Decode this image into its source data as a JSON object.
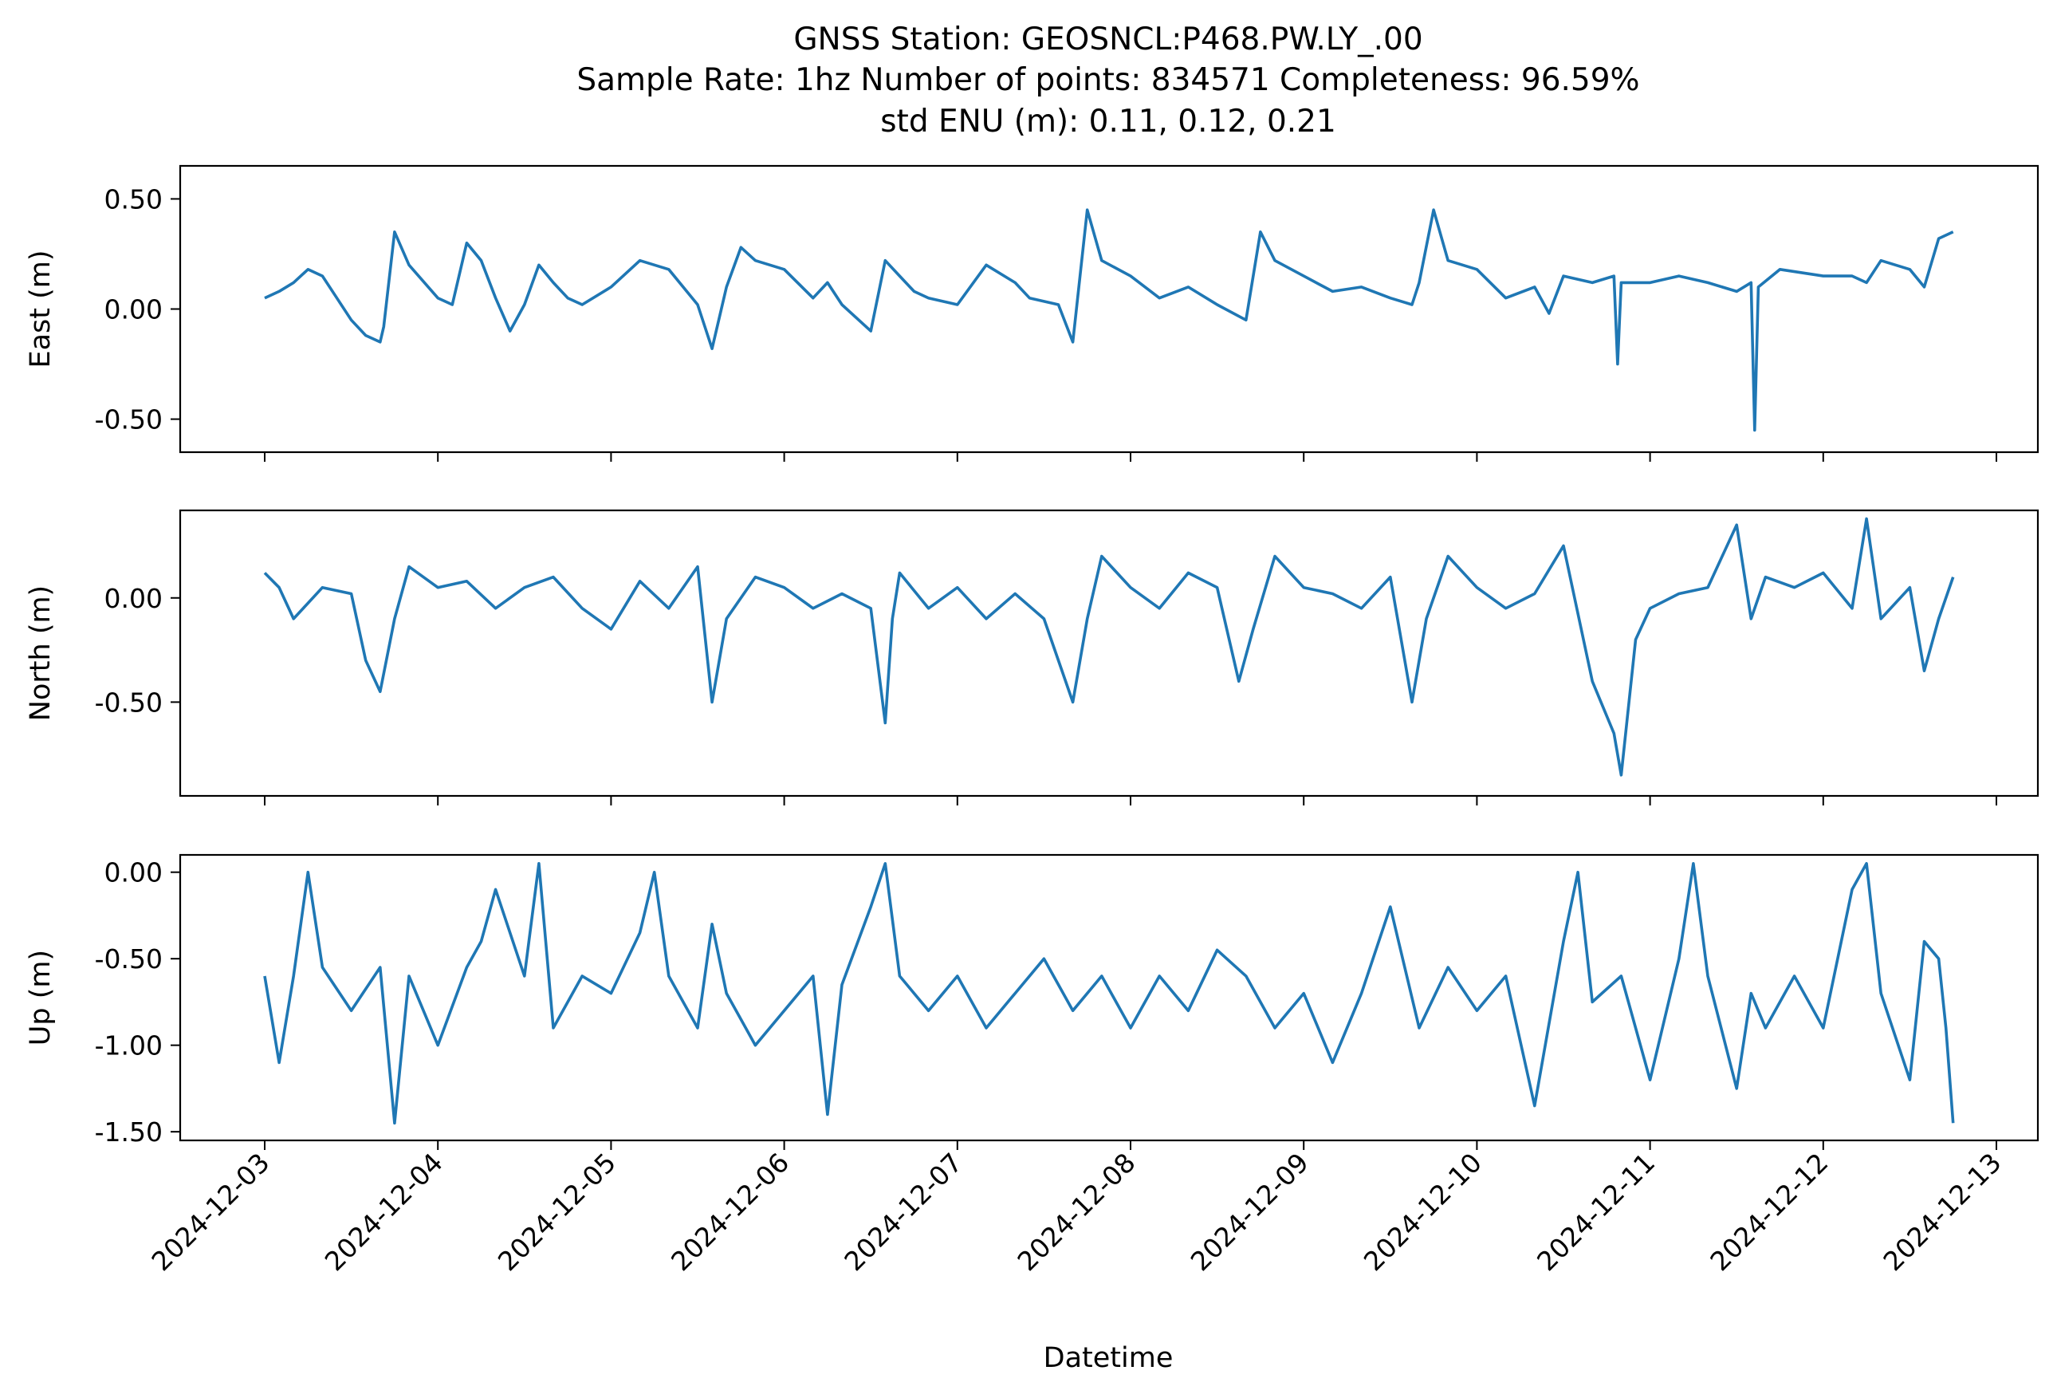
{
  "chart_data": {
    "type": "line",
    "title": [
      "GNSS Station: GEOSNCL:P468.PW.LY_.00",
      "Sample Rate: 1hz   Number of points: 834571    Completeness:  96.59%",
      "std ENU (m):  0.11, 0.12, 0.21"
    ],
    "xlabel": "Datetime",
    "x_range": [
      "2024-12-03T00:00",
      "2024-12-12T18:00"
    ],
    "x_ticks": [
      "2024-12-03",
      "2024-12-04",
      "2024-12-05",
      "2024-12-06",
      "2024-12-07",
      "2024-12-08",
      "2024-12-09",
      "2024-12-10",
      "2024-12-11",
      "2024-12-12",
      "2024-12-13"
    ],
    "color": "#1f77b4",
    "grid": false,
    "panels": [
      {
        "ylabel": "East (m)",
        "ylim": [
          -0.65,
          0.65
        ],
        "y_ticks": [
          "0.50",
          "0.00",
          "-0.50"
        ],
        "y_tick_values": [
          0.5,
          0.0,
          -0.5
        ],
        "x": [
          "2024-12-03T00:00",
          "2024-12-03T02:00",
          "2024-12-03T04:00",
          "2024-12-03T06:00",
          "2024-12-03T08:00",
          "2024-12-03T10:00",
          "2024-12-03T12:00",
          "2024-12-03T14:00",
          "2024-12-03T16:00",
          "2024-12-03T16:30",
          "2024-12-03T18:00",
          "2024-12-03T20:00",
          "2024-12-04T00:00",
          "2024-12-04T02:00",
          "2024-12-04T04:00",
          "2024-12-04T06:00",
          "2024-12-04T08:00",
          "2024-12-04T10:00",
          "2024-12-04T12:00",
          "2024-12-04T14:00",
          "2024-12-04T16:00",
          "2024-12-04T18:00",
          "2024-12-04T20:00",
          "2024-12-05T00:00",
          "2024-12-05T04:00",
          "2024-12-05T08:00",
          "2024-12-05T12:00",
          "2024-12-05T14:00",
          "2024-12-05T16:00",
          "2024-12-05T18:00",
          "2024-12-05T20:00",
          "2024-12-06T00:00",
          "2024-12-06T04:00",
          "2024-12-06T06:00",
          "2024-12-06T08:00",
          "2024-12-06T12:00",
          "2024-12-06T14:00",
          "2024-12-06T16:00",
          "2024-12-06T18:00",
          "2024-12-06T20:00",
          "2024-12-07T00:00",
          "2024-12-07T04:00",
          "2024-12-07T08:00",
          "2024-12-07T10:00",
          "2024-12-07T14:00",
          "2024-12-07T16:00",
          "2024-12-07T18:00",
          "2024-12-07T20:00",
          "2024-12-08T00:00",
          "2024-12-08T04:00",
          "2024-12-08T08:00",
          "2024-12-08T12:00",
          "2024-12-08T16:00",
          "2024-12-08T18:00",
          "2024-12-08T20:00",
          "2024-12-09T00:00",
          "2024-12-09T04:00",
          "2024-12-09T08:00",
          "2024-12-09T12:00",
          "2024-12-09T15:00",
          "2024-12-09T16:00",
          "2024-12-09T18:00",
          "2024-12-09T20:00",
          "2024-12-10T00:00",
          "2024-12-10T04:00",
          "2024-12-10T08:00",
          "2024-12-10T10:00",
          "2024-12-10T12:00",
          "2024-12-10T16:00",
          "2024-12-10T19:00",
          "2024-12-10T19:30",
          "2024-12-10T20:00",
          "2024-12-11T00:00",
          "2024-12-11T04:00",
          "2024-12-11T08:00",
          "2024-12-11T12:00",
          "2024-12-11T14:00",
          "2024-12-11T14:30",
          "2024-12-11T15:00",
          "2024-12-11T18:00",
          "2024-12-12T00:00",
          "2024-12-12T04:00",
          "2024-12-12T06:00",
          "2024-12-12T08:00",
          "2024-12-12T12:00",
          "2024-12-12T14:00",
          "2024-12-12T16:00",
          "2024-12-12T18:00"
        ],
        "y": [
          0.05,
          0.08,
          0.12,
          0.18,
          0.15,
          0.05,
          -0.05,
          -0.12,
          -0.15,
          -0.08,
          0.35,
          0.2,
          0.05,
          0.02,
          0.3,
          0.22,
          0.05,
          -0.1,
          0.02,
          0.2,
          0.12,
          0.05,
          0.02,
          0.1,
          0.22,
          0.18,
          0.02,
          -0.18,
          0.1,
          0.28,
          0.22,
          0.18,
          0.05,
          0.12,
          0.02,
          -0.1,
          0.22,
          0.15,
          0.08,
          0.05,
          0.02,
          0.2,
          0.12,
          0.05,
          0.02,
          -0.15,
          0.45,
          0.22,
          0.15,
          0.05,
          0.1,
          0.02,
          -0.05,
          0.35,
          0.22,
          0.15,
          0.08,
          0.1,
          0.05,
          0.02,
          0.12,
          0.45,
          0.22,
          0.18,
          0.05,
          0.1,
          -0.02,
          0.15,
          0.12,
          0.15,
          -0.25,
          0.12,
          0.12,
          0.15,
          0.12,
          0.08,
          0.12,
          -0.55,
          0.1,
          0.18,
          0.15,
          0.15,
          0.12,
          0.22,
          0.18,
          0.1,
          0.32,
          0.35
        ]
      },
      {
        "ylabel": "North (m)",
        "ylim": [
          -0.95,
          0.42
        ],
        "y_ticks": [
          "0.00",
          "-0.50"
        ],
        "y_tick_values": [
          0.0,
          -0.5
        ],
        "x": [
          "2024-12-03T00:00",
          "2024-12-03T02:00",
          "2024-12-03T04:00",
          "2024-12-03T08:00",
          "2024-12-03T12:00",
          "2024-12-03T14:00",
          "2024-12-03T16:00",
          "2024-12-03T18:00",
          "2024-12-03T20:00",
          "2024-12-04T00:00",
          "2024-12-04T04:00",
          "2024-12-04T08:00",
          "2024-12-04T12:00",
          "2024-12-04T16:00",
          "2024-12-04T20:00",
          "2024-12-05T00:00",
          "2024-12-05T04:00",
          "2024-12-05T08:00",
          "2024-12-05T12:00",
          "2024-12-05T14:00",
          "2024-12-05T16:00",
          "2024-12-05T20:00",
          "2024-12-06T00:00",
          "2024-12-06T04:00",
          "2024-12-06T08:00",
          "2024-12-06T12:00",
          "2024-12-06T14:00",
          "2024-12-06T15:00",
          "2024-12-06T16:00",
          "2024-12-06T20:00",
          "2024-12-07T00:00",
          "2024-12-07T04:00",
          "2024-12-07T08:00",
          "2024-12-07T12:00",
          "2024-12-07T14:00",
          "2024-12-07T16:00",
          "2024-12-07T18:00",
          "2024-12-07T20:00",
          "2024-12-08T00:00",
          "2024-12-08T04:00",
          "2024-12-08T08:00",
          "2024-12-08T12:00",
          "2024-12-08T15:00",
          "2024-12-08T17:00",
          "2024-12-08T20:00",
          "2024-12-09T00:00",
          "2024-12-09T04:00",
          "2024-12-09T08:00",
          "2024-12-09T12:00",
          "2024-12-09T15:00",
          "2024-12-09T17:00",
          "2024-12-09T20:00",
          "2024-12-10T00:00",
          "2024-12-10T04:00",
          "2024-12-10T08:00",
          "2024-12-10T12:00",
          "2024-12-10T16:00",
          "2024-12-10T19:00",
          "2024-12-10T20:00",
          "2024-12-10T22:00",
          "2024-12-11T00:00",
          "2024-12-11T04:00",
          "2024-12-11T08:00",
          "2024-12-11T12:00",
          "2024-12-11T14:00",
          "2024-12-11T16:00",
          "2024-12-11T20:00",
          "2024-12-12T00:00",
          "2024-12-12T04:00",
          "2024-12-12T06:00",
          "2024-12-12T08:00",
          "2024-12-12T12:00",
          "2024-12-12T14:00",
          "2024-12-12T16:00",
          "2024-12-12T18:00"
        ],
        "y": [
          0.12,
          0.05,
          -0.1,
          0.05,
          0.02,
          -0.3,
          -0.45,
          -0.1,
          0.15,
          0.05,
          0.08,
          -0.05,
          0.05,
          0.1,
          -0.05,
          -0.15,
          0.08,
          -0.05,
          0.15,
          -0.5,
          -0.1,
          0.1,
          0.05,
          -0.05,
          0.02,
          -0.05,
          -0.6,
          -0.1,
          0.12,
          -0.05,
          0.05,
          -0.1,
          0.02,
          -0.1,
          -0.3,
          -0.5,
          -0.1,
          0.2,
          0.05,
          -0.05,
          0.12,
          0.05,
          -0.4,
          -0.15,
          0.2,
          0.05,
          0.02,
          -0.05,
          0.1,
          -0.5,
          -0.1,
          0.2,
          0.05,
          -0.05,
          0.02,
          0.25,
          -0.4,
          -0.65,
          -0.85,
          -0.2,
          -0.05,
          0.02,
          0.05,
          0.35,
          -0.1,
          0.1,
          0.05,
          0.12,
          -0.05,
          0.38,
          -0.1,
          0.05,
          -0.35,
          -0.1,
          0.1
        ]
      },
      {
        "ylabel": "Up (m)",
        "ylim": [
          -1.55,
          0.1
        ],
        "y_ticks": [
          "0.00",
          "-0.50",
          "-1.00",
          "-1.50"
        ],
        "y_tick_values": [
          0.0,
          -0.5,
          -1.0,
          -1.5
        ],
        "x": [
          "2024-12-03T00:00",
          "2024-12-03T02:00",
          "2024-12-03T04:00",
          "2024-12-03T06:00",
          "2024-12-03T08:00",
          "2024-12-03T12:00",
          "2024-12-03T16:00",
          "2024-12-03T18:00",
          "2024-12-03T20:00",
          "2024-12-04T00:00",
          "2024-12-04T04:00",
          "2024-12-04T06:00",
          "2024-12-04T08:00",
          "2024-12-04T12:00",
          "2024-12-04T14:00",
          "2024-12-04T16:00",
          "2024-12-04T20:00",
          "2024-12-05T00:00",
          "2024-12-05T04:00",
          "2024-12-05T06:00",
          "2024-12-05T08:00",
          "2024-12-05T12:00",
          "2024-12-05T14:00",
          "2024-12-05T16:00",
          "2024-12-05T20:00",
          "2024-12-06T00:00",
          "2024-12-06T04:00",
          "2024-12-06T06:00",
          "2024-12-06T08:00",
          "2024-12-06T12:00",
          "2024-12-06T14:00",
          "2024-12-06T16:00",
          "2024-12-06T20:00",
          "2024-12-07T00:00",
          "2024-12-07T04:00",
          "2024-12-07T08:00",
          "2024-12-07T12:00",
          "2024-12-07T16:00",
          "2024-12-07T20:00",
          "2024-12-08T00:00",
          "2024-12-08T04:00",
          "2024-12-08T08:00",
          "2024-12-08T12:00",
          "2024-12-08T16:00",
          "2024-12-08T20:00",
          "2024-12-09T00:00",
          "2024-12-09T04:00",
          "2024-12-09T08:00",
          "2024-12-09T12:00",
          "2024-12-09T16:00",
          "2024-12-09T20:00",
          "2024-12-10T00:00",
          "2024-12-10T04:00",
          "2024-12-10T08:00",
          "2024-12-10T12:00",
          "2024-12-10T14:00",
          "2024-12-10T16:00",
          "2024-12-10T20:00",
          "2024-12-11T00:00",
          "2024-12-11T04:00",
          "2024-12-11T06:00",
          "2024-12-11T08:00",
          "2024-12-11T12:00",
          "2024-12-11T14:00",
          "2024-12-11T16:00",
          "2024-12-11T20:00",
          "2024-12-12T00:00",
          "2024-12-12T04:00",
          "2024-12-12T06:00",
          "2024-12-12T08:00",
          "2024-12-12T12:00",
          "2024-12-12T14:00",
          "2024-12-12T16:00",
          "2024-12-12T17:00",
          "2024-12-12T18:00"
        ],
        "y": [
          -0.6,
          -1.1,
          -0.6,
          0.0,
          -0.55,
          -0.8,
          -0.55,
          -1.45,
          -0.6,
          -1.0,
          -0.55,
          -0.4,
          -0.1,
          -0.6,
          0.05,
          -0.9,
          -0.6,
          -0.7,
          -0.35,
          0.0,
          -0.6,
          -0.9,
          -0.3,
          -0.7,
          -1.0,
          -0.8,
          -0.6,
          -1.4,
          -0.65,
          -0.2,
          0.05,
          -0.6,
          -0.8,
          -0.6,
          -0.9,
          -0.7,
          -0.5,
          -0.8,
          -0.6,
          -0.9,
          -0.6,
          -0.8,
          -0.45,
          -0.6,
          -0.9,
          -0.7,
          -1.1,
          -0.7,
          -0.2,
          -0.9,
          -0.55,
          -0.8,
          -0.6,
          -1.35,
          -0.4,
          0.0,
          -0.75,
          -0.6,
          -1.2,
          -0.5,
          0.05,
          -0.6,
          -1.25,
          -0.7,
          -0.9,
          -0.6,
          -0.9,
          -0.1,
          0.05,
          -0.7,
          -1.2,
          -0.4,
          -0.5,
          -0.9,
          -1.45
        ]
      }
    ]
  }
}
